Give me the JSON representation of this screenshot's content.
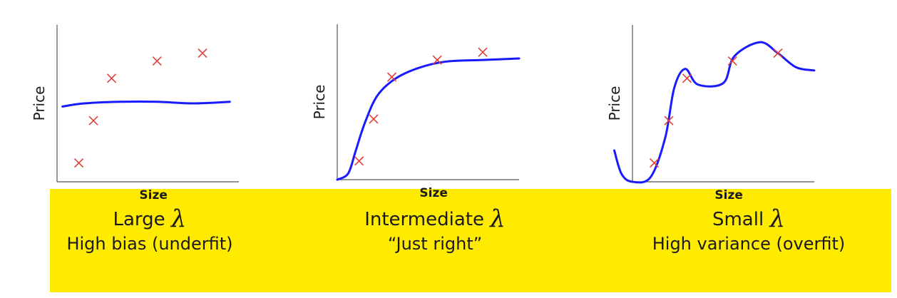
{
  "chart_data": [
    {
      "type": "line",
      "title": "",
      "xlabel": "Size",
      "ylabel": "Price",
      "points": [
        [
          0.12,
          0.12
        ],
        [
          0.2,
          0.39
        ],
        [
          0.3,
          0.66
        ],
        [
          0.55,
          0.77
        ],
        [
          0.8,
          0.82
        ]
      ],
      "curve": [
        [
          0.03,
          0.48
        ],
        [
          0.15,
          0.5
        ],
        [
          0.35,
          0.51
        ],
        [
          0.55,
          0.51
        ],
        [
          0.75,
          0.5
        ],
        [
          0.95,
          0.51
        ]
      ],
      "caption": {
        "prefix": "Large ",
        "symbol": "λ",
        "line2": "High bias (underfit)"
      }
    },
    {
      "type": "line",
      "title": "",
      "xlabel": "Size",
      "ylabel": "Price",
      "points": [
        [
          0.12,
          0.12
        ],
        [
          0.2,
          0.39
        ],
        [
          0.3,
          0.66
        ],
        [
          0.55,
          0.77
        ],
        [
          0.8,
          0.82
        ]
      ],
      "curve": [
        [
          0.0,
          0.0
        ],
        [
          0.06,
          0.04
        ],
        [
          0.1,
          0.18
        ],
        [
          0.15,
          0.36
        ],
        [
          0.22,
          0.54
        ],
        [
          0.32,
          0.65
        ],
        [
          0.45,
          0.72
        ],
        [
          0.6,
          0.76
        ],
        [
          0.8,
          0.77
        ],
        [
          1.0,
          0.78
        ]
      ],
      "caption": {
        "prefix": "Intermediate ",
        "symbol": "λ",
        "line2": "“Just right”"
      }
    },
    {
      "type": "line",
      "title": "",
      "xlabel": "Size",
      "ylabel": "Price",
      "points": [
        [
          0.12,
          0.12
        ],
        [
          0.2,
          0.39
        ],
        [
          0.3,
          0.66
        ],
        [
          0.55,
          0.77
        ],
        [
          0.8,
          0.82
        ]
      ],
      "curve": [
        [
          -0.1,
          0.2
        ],
        [
          -0.06,
          0.05
        ],
        [
          0.0,
          0.0
        ],
        [
          0.1,
          0.03
        ],
        [
          0.18,
          0.28
        ],
        [
          0.23,
          0.6
        ],
        [
          0.29,
          0.72
        ],
        [
          0.36,
          0.62
        ],
        [
          0.5,
          0.63
        ],
        [
          0.56,
          0.8
        ],
        [
          0.7,
          0.89
        ],
        [
          0.8,
          0.82
        ],
        [
          0.9,
          0.73
        ],
        [
          1.0,
          0.71
        ]
      ],
      "caption": {
        "prefix": "Small ",
        "symbol": "λ",
        "line2": "High variance (overfit)"
      }
    }
  ],
  "colors": {
    "curve": "#1a1aff",
    "marker": "#e0403a",
    "axis": "#555555",
    "band": "#ffeb00"
  }
}
